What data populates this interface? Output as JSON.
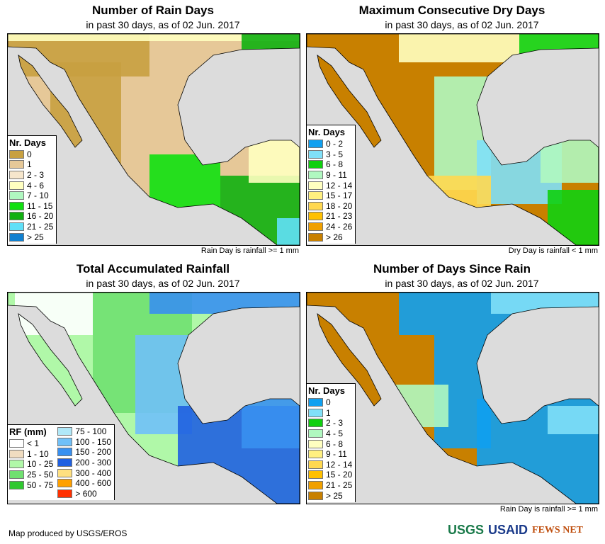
{
  "panels": [
    {
      "title": "Number of Rain Days",
      "subtitle": "in past 30 days, as of 02 Jun. 2017",
      "note": "Rain Day is rainfall >= 1 mm",
      "legend": {
        "title": "Nr. Days",
        "items": [
          {
            "label": "0",
            "color": "#c8a040"
          },
          {
            "label": "1",
            "color": "#e6c898"
          },
          {
            "label": "2 - 3",
            "color": "#f6e6cc"
          },
          {
            "label": "4 - 6",
            "color": "#ffffc0"
          },
          {
            "label": "7 - 10",
            "color": "#b0f8c0"
          },
          {
            "label": "11 - 15",
            "color": "#10e010"
          },
          {
            "label": "16 - 20",
            "color": "#10b010"
          },
          {
            "label": "21 - 25",
            "color": "#60e0f8"
          },
          {
            "label": "> 25",
            "color": "#1080d0"
          }
        ]
      }
    },
    {
      "title": "Maximum Consecutive Dry Days",
      "subtitle": "in past 30 days, as of 02 Jun. 2017",
      "note": "Dry Day is rainfall < 1 mm",
      "legend": {
        "title": "Nr. Days",
        "items": [
          {
            "label": "0 - 2",
            "color": "#10a0f0"
          },
          {
            "label": "3 - 5",
            "color": "#80e0f8"
          },
          {
            "label": "6 - 8",
            "color": "#10d010"
          },
          {
            "label": "9 - 11",
            "color": "#b0f8c0"
          },
          {
            "label": "12 - 14",
            "color": "#ffffc0"
          },
          {
            "label": "15 - 17",
            "color": "#fff080"
          },
          {
            "label": "18 - 20",
            "color": "#ffd850"
          },
          {
            "label": "21 - 23",
            "color": "#ffc000"
          },
          {
            "label": "24 - 26",
            "color": "#f0a000"
          },
          {
            "label": "> 26",
            "color": "#c88000"
          }
        ]
      }
    },
    {
      "title": "Total Accumulated Rainfall",
      "subtitle": "in past 30 days, as of 02 Jun. 2017",
      "note": "",
      "legend": {
        "title": "RF (mm)",
        "items": [
          {
            "label": "< 1",
            "color": "#ffffff"
          },
          {
            "label": "1 - 10",
            "color": "#f0dcc0"
          },
          {
            "label": "10 - 25",
            "color": "#b0f8a8"
          },
          {
            "label": "25 - 50",
            "color": "#70e070"
          },
          {
            "label": "50 - 75",
            "color": "#30c830"
          },
          {
            "label": "75 - 100",
            "color": "#b0e8f8"
          },
          {
            "label": "100 - 150",
            "color": "#70c0f8"
          },
          {
            "label": "150 - 200",
            "color": "#3890f0"
          },
          {
            "label": "200 - 300",
            "color": "#2060e0"
          },
          {
            "label": "300 - 400",
            "color": "#ffe080"
          },
          {
            "label": "400 - 600",
            "color": "#ffa000"
          },
          {
            "label": "> 600",
            "color": "#ff3000"
          }
        ]
      }
    },
    {
      "title": "Number of Days Since Rain",
      "subtitle": "in past 30 days, as of 02 Jun. 2017",
      "note": "Rain Day is rainfall >= 1 mm",
      "legend": {
        "title": "Nr. Days",
        "items": [
          {
            "label": "0",
            "color": "#10a0f0"
          },
          {
            "label": "1",
            "color": "#80e0f8"
          },
          {
            "label": "2 - 3",
            "color": "#10d010"
          },
          {
            "label": "4 - 5",
            "color": "#b0f8c0"
          },
          {
            "label": "6 - 8",
            "color": "#ffffc0"
          },
          {
            "label": "9 - 11",
            "color": "#fff080"
          },
          {
            "label": "12 - 14",
            "color": "#ffd850"
          },
          {
            "label": "15 - 20",
            "color": "#ffc000"
          },
          {
            "label": "21 - 25",
            "color": "#f0a000"
          },
          {
            "label": "> 25",
            "color": "#c88000"
          }
        ]
      }
    }
  ],
  "footer": {
    "credit": "Map produced by USGS/EROS",
    "logos": [
      "USGS",
      "USAID",
      "FEWS NET"
    ]
  }
}
